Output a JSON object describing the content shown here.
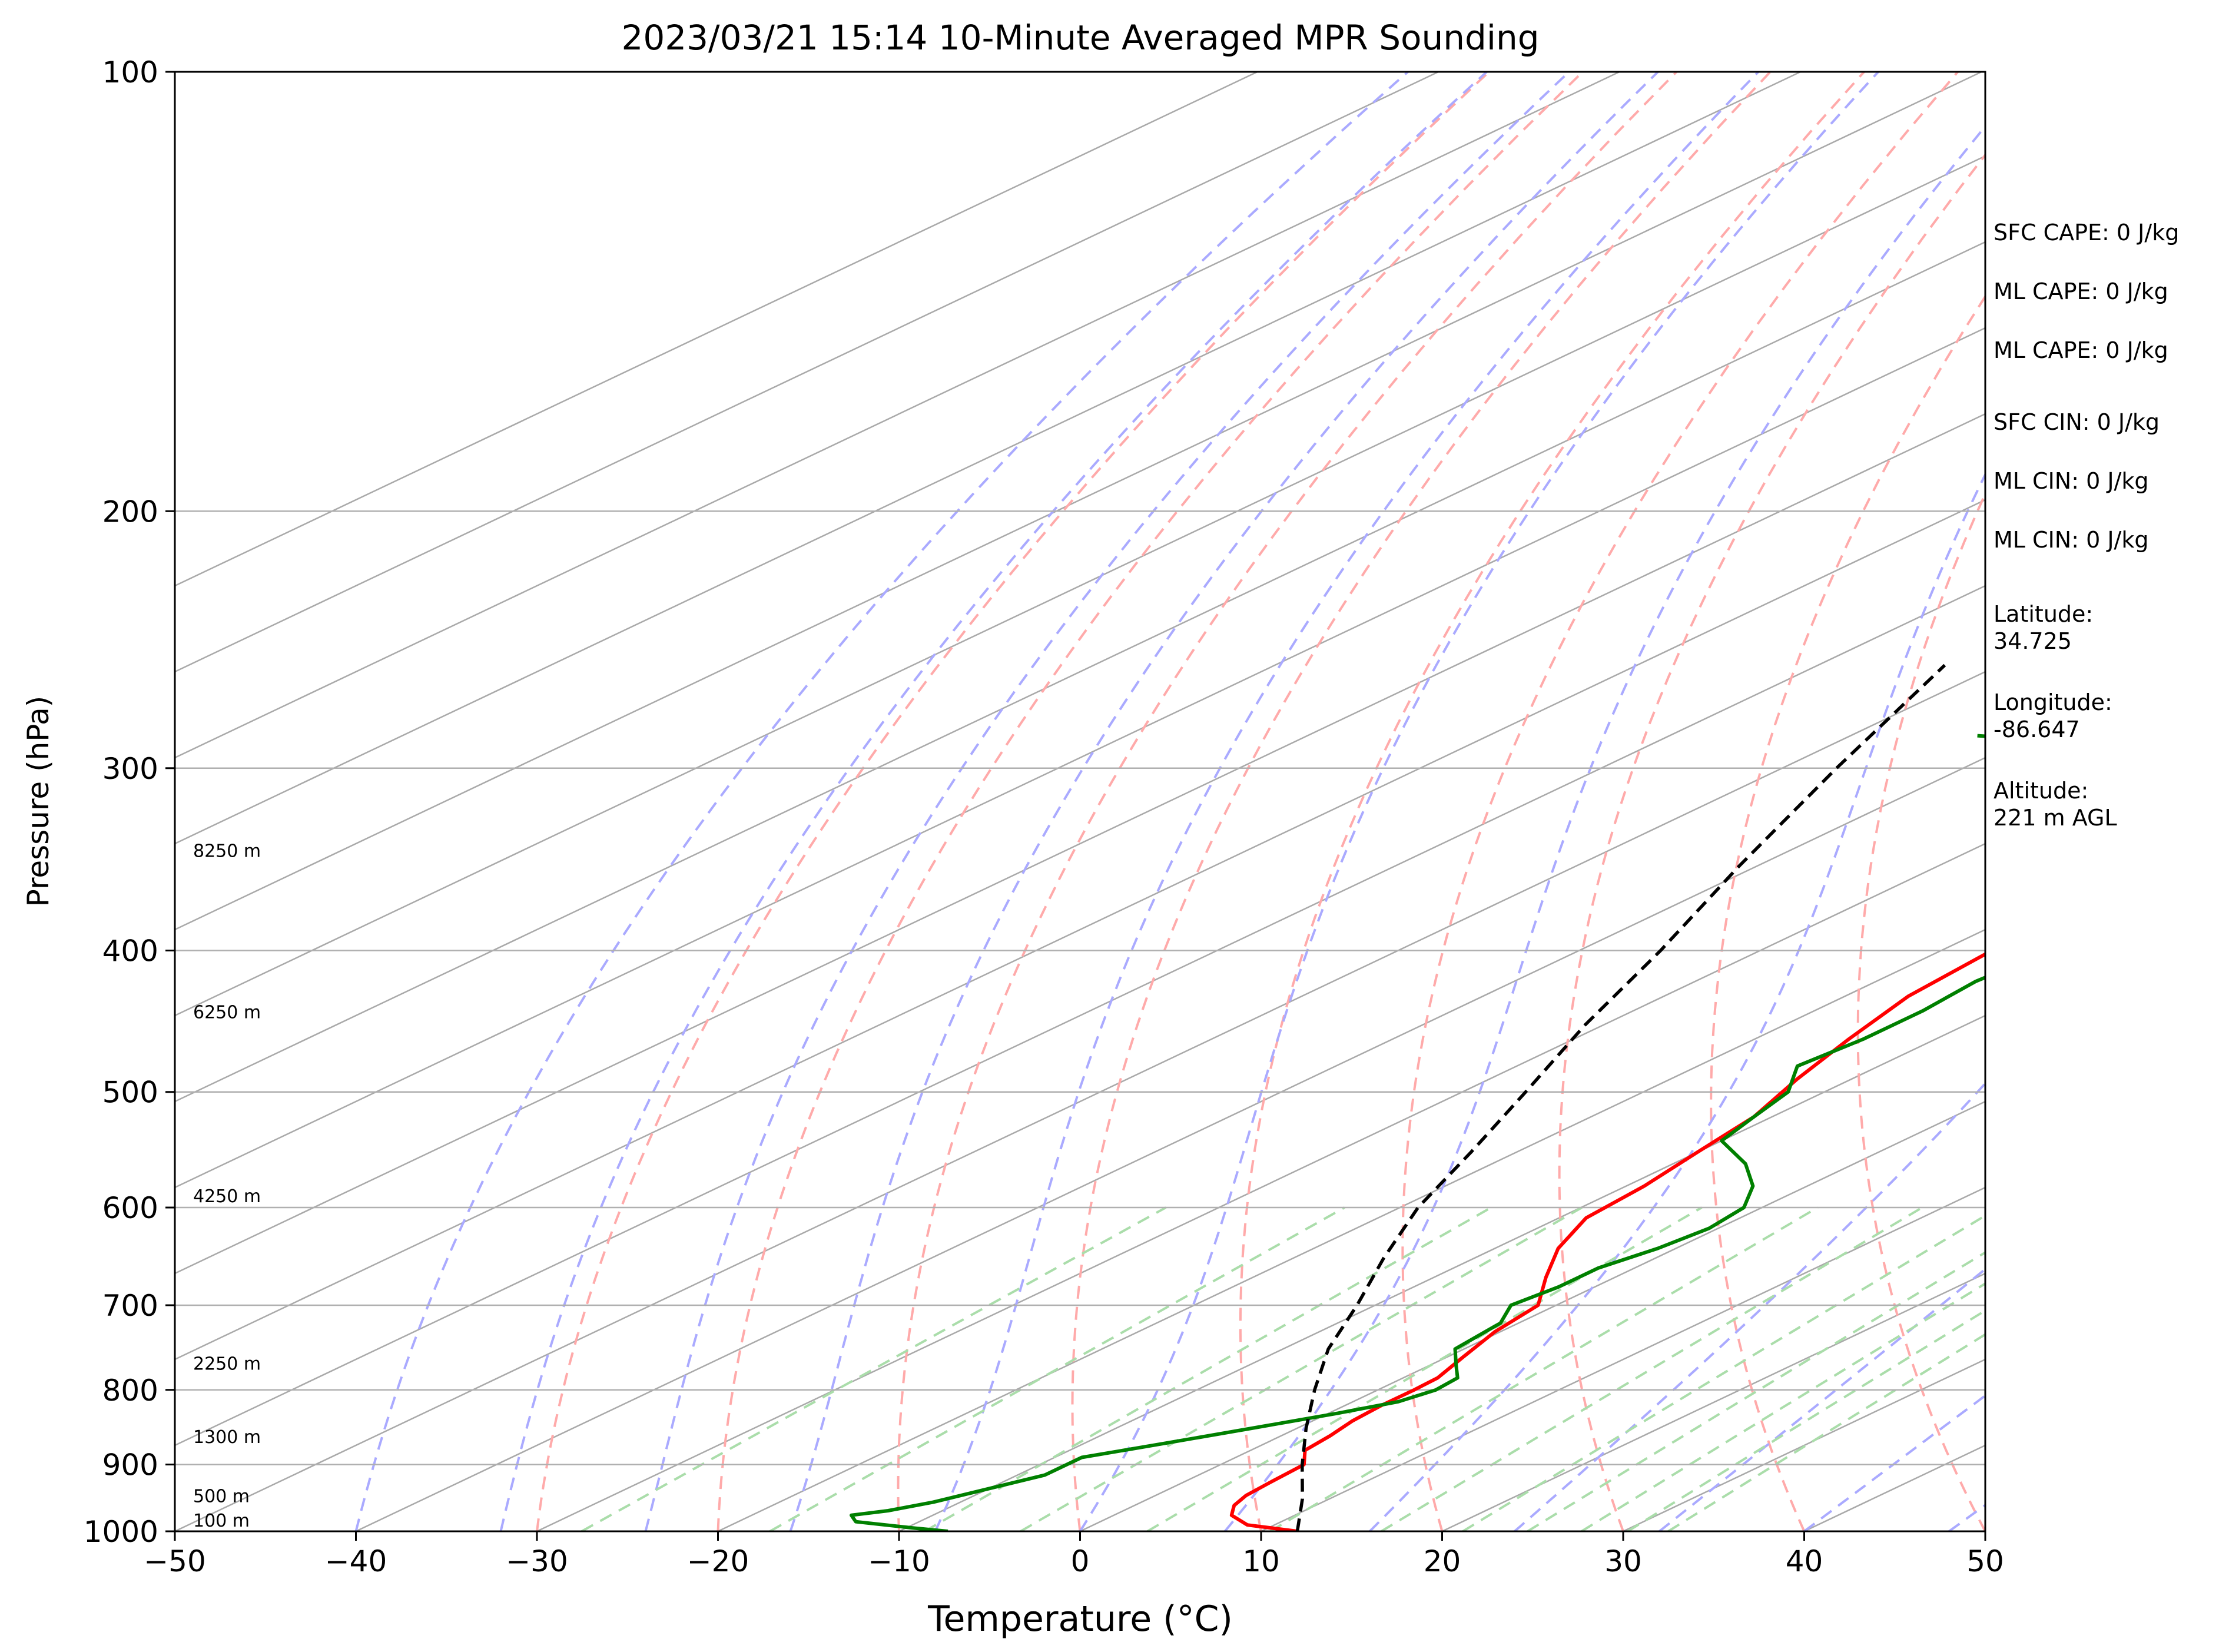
{
  "chart_data": {
    "type": "line",
    "title": "2023/03/21 15:14 10-Minute Averaged MPR Sounding",
    "xlabel": "Temperature (°C)",
    "ylabel": "Pressure (hPa)",
    "xlim": [
      -50,
      50
    ],
    "ylim": [
      1000,
      100
    ],
    "y_scale": "log",
    "skew": "skew-T",
    "x_ticks": [
      -50,
      -40,
      -30,
      -20,
      -10,
      0,
      10,
      20,
      30,
      40,
      50
    ],
    "x_tick_labels": [
      "−50",
      "−40",
      "−30",
      "−20",
      "−10",
      "0",
      "10",
      "20",
      "30",
      "40",
      "50"
    ],
    "y_ticks": [
      1000,
      900,
      800,
      700,
      600,
      500,
      400,
      300,
      200,
      100
    ],
    "y_tick_labels": [
      "1000",
      "900",
      "800",
      "700",
      "600",
      "500",
      "400",
      "300",
      "200",
      "100"
    ],
    "grid": "horizontal at pressure ticks",
    "series": [
      {
        "role": "temperature",
        "color": "#ff0000",
        "points": [
          [
            1000,
            12.0
          ],
          [
            990,
            8.5
          ],
          [
            975,
            6.5
          ],
          [
            960,
            5.5
          ],
          [
            945,
            5.0
          ],
          [
            925,
            4.8
          ],
          [
            900,
            4.6
          ],
          [
            880,
            3.0
          ],
          [
            860,
            2.7
          ],
          [
            840,
            2.2
          ],
          [
            820,
            2.0
          ],
          [
            800,
            2.0
          ],
          [
            785,
            1.9
          ],
          [
            760,
            0.9
          ],
          [
            730,
            -0.3
          ],
          [
            700,
            -1.0
          ],
          [
            670,
            -3.8
          ],
          [
            640,
            -6.5
          ],
          [
            610,
            -8.5
          ],
          [
            580,
            -9.0
          ],
          [
            550,
            -10.0
          ],
          [
            520,
            -11.0
          ],
          [
            490,
            -13.0
          ],
          [
            460,
            -14.8
          ],
          [
            430,
            -16.5
          ],
          [
            400,
            -17.2
          ],
          [
            370,
            -19.5
          ],
          [
            340,
            -22.0
          ],
          [
            310,
            -22.8
          ],
          [
            290,
            -23.5
          ],
          [
            270,
            -23.8
          ],
          [
            255,
            -22.8
          ]
        ]
      },
      {
        "role": "dewpoint",
        "color": "#008000",
        "points": [
          [
            1000,
            -7.3
          ],
          [
            995,
            -9.5
          ],
          [
            985,
            -13.5
          ],
          [
            975,
            -14.5
          ],
          [
            968,
            -13.0
          ],
          [
            955,
            -11.5
          ],
          [
            935,
            -10.0
          ],
          [
            915,
            -8.5
          ],
          [
            890,
            -8.5
          ],
          [
            870,
            -5.5
          ],
          [
            850,
            -2.5
          ],
          [
            830,
            0.5
          ],
          [
            815,
            2.5
          ],
          [
            800,
            3.2
          ],
          [
            785,
            3.0
          ],
          [
            770,
            1.5
          ],
          [
            750,
            -0.5
          ],
          [
            720,
            -1.0
          ],
          [
            700,
            -2.5
          ],
          [
            680,
            -2.0
          ],
          [
            660,
            -2.0
          ],
          [
            640,
            -1.0
          ],
          [
            620,
            -0.5
          ],
          [
            600,
            -1.0
          ],
          [
            580,
            -3.0
          ],
          [
            560,
            -6.0
          ],
          [
            540,
            -10.0
          ],
          [
            520,
            -11.0
          ],
          [
            500,
            -12.0
          ],
          [
            480,
            -14.5
          ],
          [
            460,
            -14.0
          ],
          [
            440,
            -14.0
          ],
          [
            420,
            -14.5
          ],
          [
            400,
            -14.0
          ],
          [
            385,
            -13.5
          ],
          [
            370,
            -15.0
          ],
          [
            355,
            -17.0
          ],
          [
            340,
            -20.0
          ],
          [
            330,
            -22.5
          ],
          [
            315,
            -25.0
          ],
          [
            300,
            -27.0
          ],
          [
            290,
            -33.0
          ],
          [
            285,
            -43.0
          ]
        ]
      },
      {
        "role": "parcel",
        "color": "#000000",
        "style": "dashed",
        "points": [
          [
            1000,
            12.0
          ],
          [
            950,
            8.5
          ],
          [
            900,
            4.5
          ],
          [
            850,
            0.5
          ],
          [
            800,
            -3.5
          ],
          [
            750,
            -7.5
          ],
          [
            700,
            -11.0
          ],
          [
            650,
            -15.0
          ],
          [
            600,
            -19.0
          ],
          [
            550,
            -22.5
          ],
          [
            500,
            -26.5
          ],
          [
            450,
            -31.0
          ],
          [
            400,
            -35.5
          ],
          [
            350,
            -41.0
          ],
          [
            300,
            -47.0
          ],
          [
            255,
            -53.0
          ]
        ]
      }
    ],
    "height_labels": [
      {
        "pressure": 1000,
        "text": "100 m"
      },
      {
        "pressure": 955,
        "text": "500 m"
      },
      {
        "pressure": 870,
        "text": "1300 m"
      },
      {
        "pressure": 775,
        "text": "2250 m"
      },
      {
        "pressure": 595,
        "text": "4250 m"
      },
      {
        "pressure": 445,
        "text": "6250 m"
      },
      {
        "pressure": 345,
        "text": "8250 m"
      }
    ],
    "background_lines": [
      {
        "name": "isotherms",
        "color": "#a9a9a9",
        "style": "solid"
      },
      {
        "name": "dry-adiabats",
        "color": "#ffaaaa",
        "style": "dashed"
      },
      {
        "name": "moist-adiabats",
        "color": "#aaaaff",
        "style": "dashed"
      },
      {
        "name": "mixing-ratio-lines",
        "color": "#aaddaa",
        "style": "dashed"
      }
    ]
  },
  "side_info": [
    "SFC CAPE: 0 J/kg",
    "ML CAPE: 0 J/kg",
    "ML CAPE: 0 J/kg",
    "SFC CIN: 0 J/kg",
    "ML CIN: 0 J/kg",
    "ML CIN: 0 J/kg",
    "Latitude:\n34.725",
    "Longitude:\n-86.647",
    "Altitude:\n221 m AGL"
  ]
}
